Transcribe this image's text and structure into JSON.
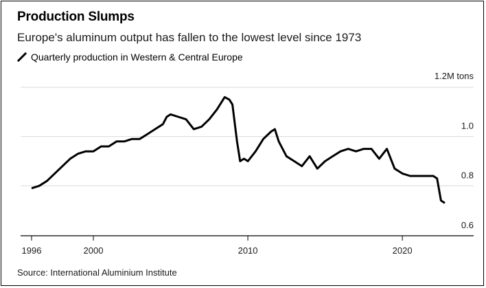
{
  "chart_data": {
    "type": "line",
    "title": "Production Slumps",
    "subtitle": "Europe's aluminum output has fallen to the lowest level since 1973",
    "legend": [
      "Quarterly production in Western & Central Europe"
    ],
    "source": "Source: International Aluminium Institute",
    "ylabel": "1.2M tons",
    "ylim": [
      0.6,
      1.2
    ],
    "xlim": [
      1996,
      2023.5
    ],
    "yticks": [
      {
        "value": 1.0,
        "label": "1.0"
      },
      {
        "value": 0.8,
        "label": "0.8"
      },
      {
        "value": 0.6,
        "label": "0.6"
      }
    ],
    "xticks": [
      {
        "value": 1996,
        "label": "1996"
      },
      {
        "value": 2000,
        "label": "2000"
      },
      {
        "value": 2010,
        "label": "2010"
      },
      {
        "value": 2020,
        "label": "2020"
      }
    ],
    "series": [
      {
        "name": "Quarterly production in Western & Central Europe",
        "color": "#000000",
        "x": [
          1996.0,
          1996.5,
          1997.0,
          1997.5,
          1998.0,
          1998.5,
          1999.0,
          1999.5,
          2000.0,
          2000.5,
          2001.0,
          2001.5,
          2002.0,
          2002.5,
          2003.0,
          2003.5,
          2004.0,
          2004.5,
          2004.75,
          2005.0,
          2005.5,
          2006.0,
          2006.5,
          2007.0,
          2007.5,
          2008.0,
          2008.5,
          2008.8,
          2009.0,
          2009.3,
          2009.5,
          2009.75,
          2010.0,
          2010.5,
          2011.0,
          2011.5,
          2011.75,
          2012.0,
          2012.5,
          2013.0,
          2013.5,
          2014.0,
          2014.5,
          2015.0,
          2015.5,
          2016.0,
          2016.5,
          2017.0,
          2017.5,
          2018.0,
          2018.5,
          2018.75,
          2019.0,
          2019.5,
          2020.0,
          2020.5,
          2021.0,
          2021.5,
          2022.0,
          2022.25,
          2022.5,
          2022.75
        ],
        "values": [
          0.79,
          0.8,
          0.82,
          0.85,
          0.88,
          0.91,
          0.93,
          0.94,
          0.94,
          0.96,
          0.96,
          0.98,
          0.98,
          0.99,
          0.99,
          1.01,
          1.03,
          1.05,
          1.08,
          1.09,
          1.08,
          1.07,
          1.03,
          1.04,
          1.07,
          1.11,
          1.16,
          1.15,
          1.13,
          0.98,
          0.9,
          0.91,
          0.9,
          0.94,
          0.99,
          1.02,
          1.03,
          0.98,
          0.92,
          0.9,
          0.88,
          0.92,
          0.87,
          0.9,
          0.92,
          0.94,
          0.95,
          0.94,
          0.95,
          0.95,
          0.91,
          0.93,
          0.95,
          0.87,
          0.85,
          0.84,
          0.84,
          0.84,
          0.84,
          0.83,
          0.74,
          0.73
        ]
      }
    ]
  }
}
